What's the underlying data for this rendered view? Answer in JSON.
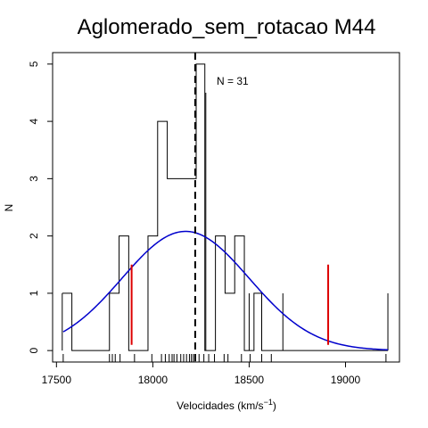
{
  "chart_data": {
    "type": "histogram",
    "title": "Aglomerado_sem_rotacao M44",
    "xlabel": "Velocidades  (km/s",
    "xlabel_sup": "−1",
    "xlabel_end": ")",
    "ylabel": "N",
    "annotation": "N =  31",
    "xlim": [
      17480,
      19280
    ],
    "ylim": [
      -0.2,
      5.2
    ],
    "x_ticks": [
      17500,
      18000,
      18500,
      19000
    ],
    "y_ticks": [
      0,
      1,
      2,
      3,
      4,
      5
    ],
    "histogram_steps": [
      {
        "x0": 17530,
        "x1": 17580,
        "y": 1
      },
      {
        "x0": 17580,
        "x1": 17775,
        "y": 0
      },
      {
        "x0": 17775,
        "x1": 17825,
        "y": 1
      },
      {
        "x0": 17825,
        "x1": 17875,
        "y": 2
      },
      {
        "x0": 17875,
        "x1": 17975,
        "y": 0
      },
      {
        "x0": 17975,
        "x1": 18025,
        "y": 2
      },
      {
        "x0": 18025,
        "x1": 18075,
        "y": 4
      },
      {
        "x0": 18075,
        "x1": 18225,
        "y": 3
      },
      {
        "x0": 18225,
        "x1": 18270,
        "y": 5
      },
      {
        "x0": 18270,
        "x1": 18325,
        "y": 0
      },
      {
        "x0": 18325,
        "x1": 18375,
        "y": 2
      },
      {
        "x0": 18375,
        "x1": 18425,
        "y": 1
      },
      {
        "x0": 18425,
        "x1": 18475,
        "y": 2
      },
      {
        "x0": 18475,
        "x1": 18525,
        "y": 0
      },
      {
        "x0": 18525,
        "x1": 18565,
        "y": 1
      },
      {
        "x0": 18565,
        "x1": 18675,
        "y": 0
      },
      {
        "x0": 18675,
        "x1": 19220,
        "y": 0
      }
    ],
    "step_spikes": [
      {
        "x": 18275,
        "y": 4.5
      },
      {
        "x": 18500,
        "y": 1
      },
      {
        "x": 18565,
        "y": 1
      },
      {
        "x": 18675,
        "y": 1
      },
      {
        "x": 19220,
        "y": 1
      }
    ],
    "gaussian": {
      "mean": 18170,
      "sd": 330,
      "peak": 2.08,
      "x_range": [
        17535,
        19220
      ],
      "color": "#0000cc"
    },
    "mean_line": {
      "x": 18220
    },
    "red_lines": [
      {
        "x": 17890,
        "y0": 0.1,
        "y1": 1.5
      },
      {
        "x": 18910,
        "y0": 0.1,
        "y1": 1.5
      }
    ],
    "rug": [
      17535,
      17775,
      17790,
      17805,
      17830,
      17905,
      17995,
      18045,
      18065,
      18085,
      18100,
      18110,
      18125,
      18145,
      18160,
      18175,
      18190,
      18200,
      18210,
      18220,
      18240,
      18265,
      18290,
      18320,
      18370,
      18390,
      18460,
      18505,
      18565,
      18615,
      19210
    ],
    "colors": {
      "title": "#6a2c91",
      "gaussian": "#0000cc",
      "red": "#dd0000",
      "axes": "#000000"
    }
  }
}
